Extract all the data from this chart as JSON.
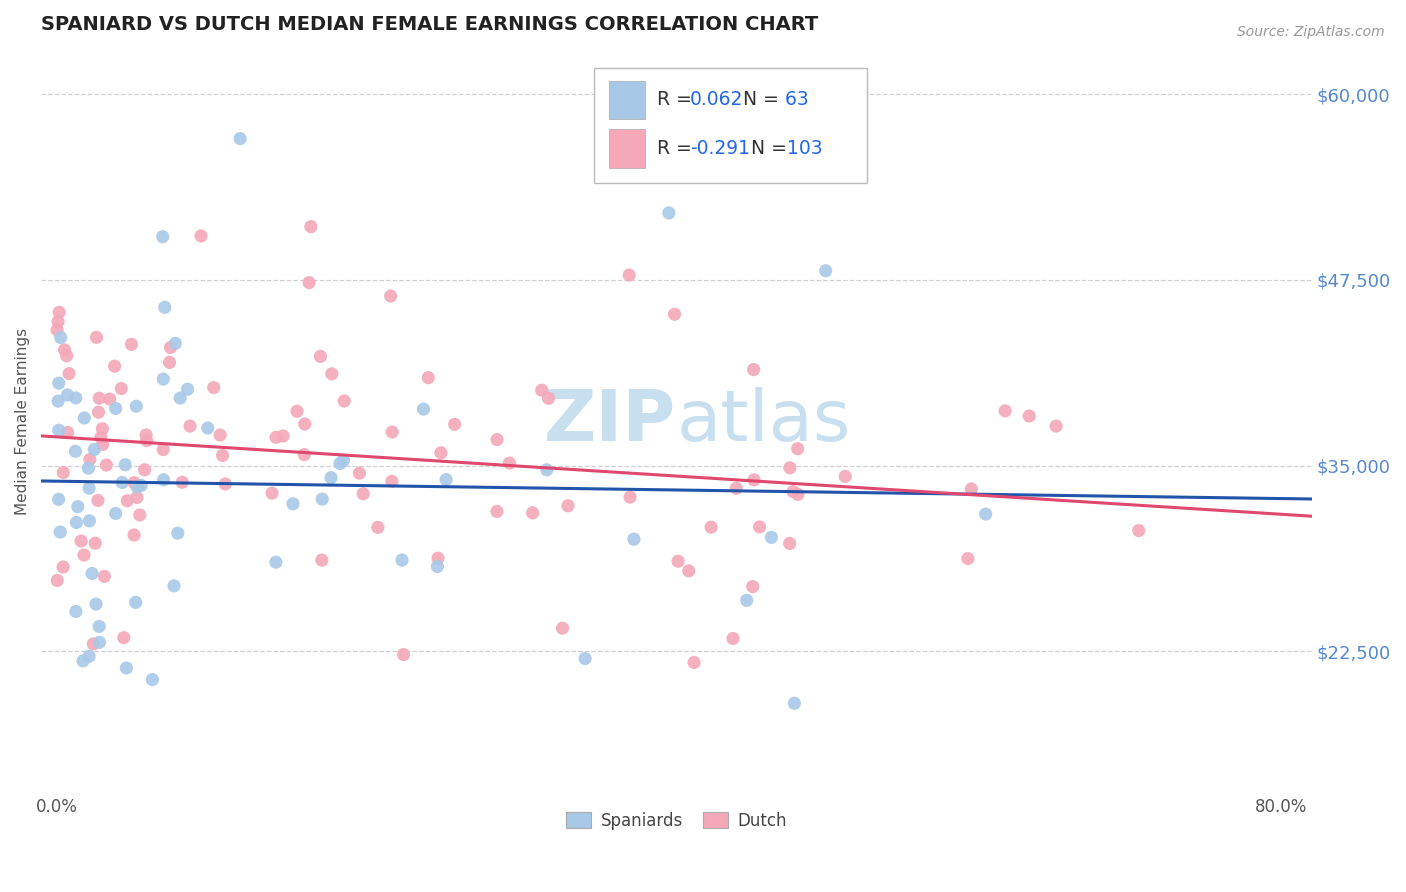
{
  "title": "SPANIARD VS DUTCH MEDIAN FEMALE EARNINGS CORRELATION CHART",
  "source_text": "Source: ZipAtlas.com",
  "ylabel": "Median Female Earnings",
  "ylim": [
    13000,
    63000
  ],
  "xlim": [
    -0.01,
    0.82
  ],
  "yticks": [
    22500,
    35000,
    47500,
    60000
  ],
  "ytick_labels": [
    "$22,500",
    "$35,000",
    "$47,500",
    "$60,000"
  ],
  "xticks": [
    0.0,
    0.8
  ],
  "xtick_labels": [
    "0.0%",
    "80.0%"
  ],
  "spaniards_color": "#a8c8e8",
  "dutch_color": "#f4a8b8",
  "spaniards_R": 0.062,
  "spaniards_N": 63,
  "dutch_R": -0.291,
  "dutch_N": 103,
  "trend_blue": "#2255aa",
  "trend_pink": "#e04870",
  "background_color": "#ffffff",
  "grid_color": "#cccccc",
  "title_color": "#222222",
  "axis_label_color": "#555555",
  "tick_color": "#5588cc",
  "legend_R_color": "#2266ee",
  "watermark_color": "#c8dff0",
  "seed": 7
}
